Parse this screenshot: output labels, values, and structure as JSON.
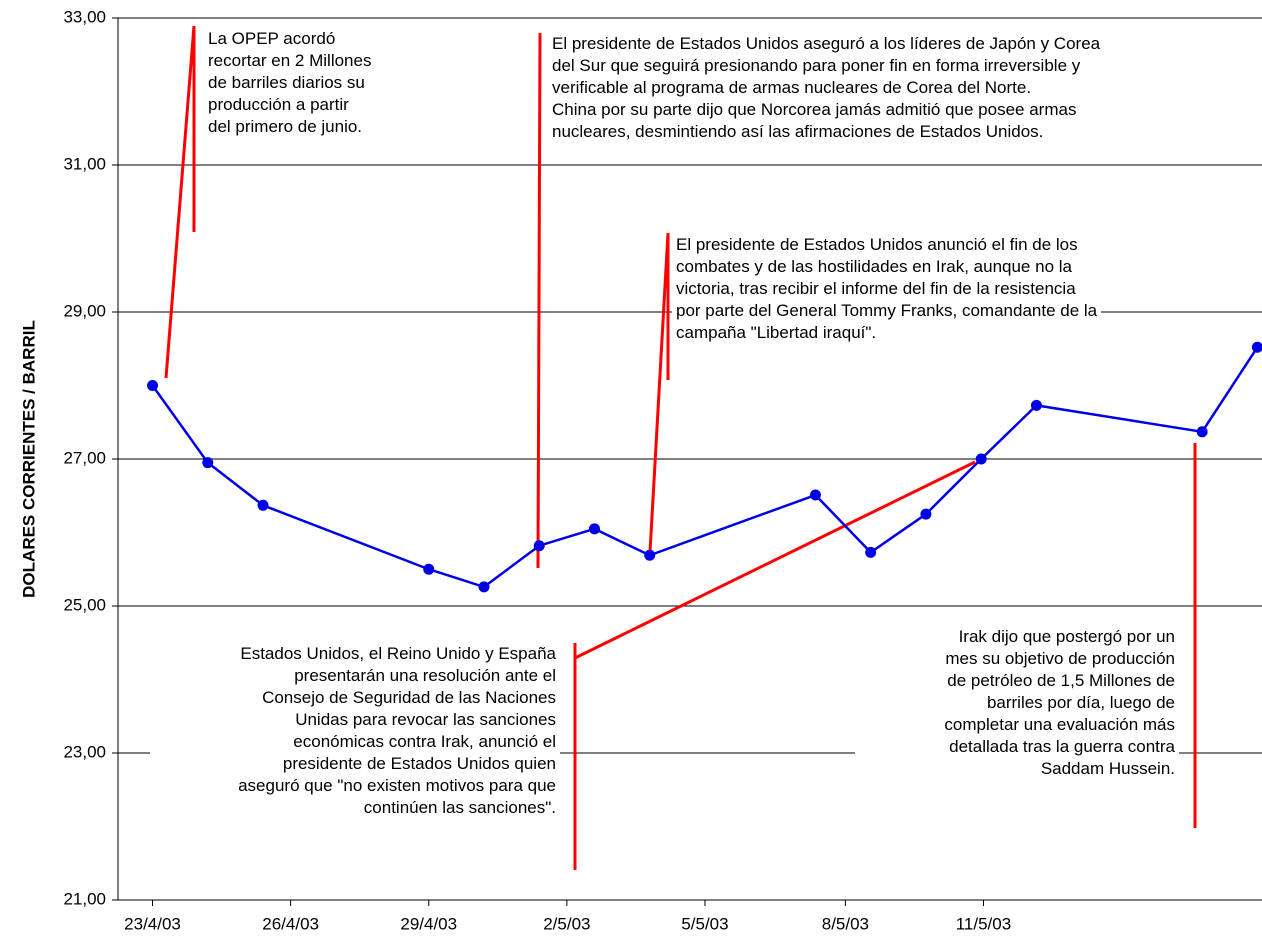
{
  "chart_data": {
    "type": "line",
    "y_label": "DOLARES CORRIENTES / BARRIL",
    "x": [
      "2003-04-23T00:00",
      "2003-04-24T00:00",
      "2003-04-25T00:00",
      "2003-04-28T00:00",
      "2003-04-29T00:00",
      "2003-04-30T00:00",
      "2003-05-01T00:00",
      "2003-05-02T00:00",
      "2003-05-05T00:00",
      "2003-05-06T00:00",
      "2003-05-07T00:00",
      "2003-05-08T00:00",
      "2003-05-09T00:00",
      "2003-05-12T00:00",
      "2003-05-13T00:00"
    ],
    "series": [
      {
        "color": "#0000e6",
        "values": [
          28.0,
          26.95,
          26.37,
          25.5,
          25.26,
          25.82,
          26.05,
          25.69,
          26.51,
          25.73,
          26.25,
          27.0,
          27.73,
          27.37,
          28.52
        ]
      }
    ],
    "xlim": [
      "2003-04-22T09:00",
      "2003-05-13T02:00"
    ],
    "xticks": [
      {
        "value": "2003-04-23T00:00",
        "label": "23/4/03"
      },
      {
        "value": "2003-04-25T12:00",
        "label": "26/4/03"
      },
      {
        "value": "2003-04-28T00:00",
        "label": "29/4/03"
      },
      {
        "value": "2003-04-30T12:00",
        "label": "2/5/03"
      },
      {
        "value": "2003-05-03T00:00",
        "label": "5/5/03"
      },
      {
        "value": "2003-05-05T13:00",
        "label": "8/5/03"
      },
      {
        "value": "2003-05-08T01:00",
        "label": "11/5/03"
      }
    ],
    "ylim": [
      21,
      33
    ],
    "yticks": [
      {
        "value": 21,
        "label": "21,00"
      },
      {
        "value": 23,
        "label": "23,00"
      },
      {
        "value": 25,
        "label": "25,00"
      },
      {
        "value": 27,
        "label": "27,00"
      },
      {
        "value": 29,
        "label": "29,00"
      },
      {
        "value": 31,
        "label": "31,00"
      },
      {
        "value": 33,
        "label": "33,00"
      }
    ],
    "grid": true,
    "annotations": [
      {
        "lines": [
          "La OPEP acordó",
          "recortar en 2 Millones",
          "de barriles diarios su",
          "producción a partir",
          "del primero de junio."
        ]
      },
      {
        "lines": [
          "El presidente de Estados Unidos aseguró a los líderes de Japón y Corea",
          "del Sur que seguirá presionando para poner fin en forma irreversible y",
          "verificable al programa de armas nucleares de Corea del Norte.",
          "China por su parte dijo que Norcorea jamás admitió que posee armas",
          "nucleares, desmintiendo así las afirmaciones de Estados Unidos."
        ]
      },
      {
        "lines": [
          "El presidente de Estados Unidos anunció el fin de los",
          "combates y de las hostilidades en Irak, aunque no la",
          "victoria, tras recibir el informe del fin de la resistencia",
          "por parte del General Tommy Franks, comandante de la",
          "campaña \"Libertad iraquí\"."
        ]
      },
      {
        "lines": [
          "Estados Unidos, el Reino Unido y España",
          "presentarán una resolución ante el",
          "Consejo de Seguridad de las Naciones",
          "Unidas para revocar las sanciones",
          "económicas contra Irak, anunció el",
          "presidente de Estados Unidos quien",
          "aseguró que \"no existen motivos para que",
          "continúen las sanciones\"."
        ]
      },
      {
        "lines": [
          "Irak dijo que postergó por un",
          "mes su objetivo de producción",
          "de petróleo de 1,5 Millones de",
          "barriles por día, luego de",
          "completar una evaluación más",
          "detallada tras la guerra contra",
          "Saddam Hussein."
        ]
      }
    ]
  }
}
